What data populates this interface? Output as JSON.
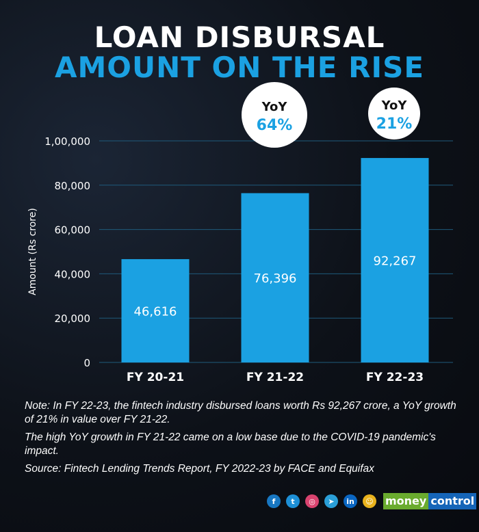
{
  "title_line1": "LOAN DISBURSAL",
  "title_line2": "AMOUNT ON THE RISE",
  "chart_data": {
    "type": "bar",
    "categories": [
      "FY 20-21",
      "FY 21-22",
      "FY 22-23"
    ],
    "values": [
      46616,
      76396,
      92267
    ],
    "data_labels": [
      "46,616",
      "76,396",
      "92,267"
    ],
    "ylabel": "Amount (Rs crore)",
    "xlabel": "",
    "ylim": [
      0,
      100000
    ],
    "yticks": [
      0,
      20000,
      40000,
      60000,
      80000,
      100000
    ],
    "ytick_labels": [
      "0",
      "20,000",
      "40,000",
      "60,000",
      "80,000",
      "1,00,000"
    ],
    "grid": true,
    "bar_color": "#1ba1e2",
    "annotations": [
      {
        "category": "FY 21-22",
        "label": "YoY",
        "value": "64%"
      },
      {
        "category": "FY 22-23",
        "label": "YoY",
        "value": "21%"
      }
    ]
  },
  "notes": [
    "Note: In FY 22-23, the fintech industry disbursed loans worth Rs 92,267 crore, a YoY growth of 21% in value over FY 21-22.",
    "The high YoY growth in FY 21-22 came on a low base due to the COVID-19 pandemic's impact.",
    "Source: Fintech Lending Trends Report, FY 2022-23 by FACE and Equifax"
  ],
  "social": [
    {
      "icon": "facebook-icon",
      "glyph": "f",
      "color": "#1877c2"
    },
    {
      "icon": "twitter-icon",
      "glyph": "t",
      "color": "#1d8fd6"
    },
    {
      "icon": "instagram-icon",
      "glyph": "◎",
      "color": "#d9436f"
    },
    {
      "icon": "telegram-icon",
      "glyph": "➤",
      "color": "#2a9fd8"
    },
    {
      "icon": "linkedin-icon",
      "glyph": "in",
      "color": "#0a66c2"
    },
    {
      "icon": "snapchat-icon",
      "glyph": "☺",
      "color": "#e9b21c"
    }
  ],
  "logo": {
    "part1": "money",
    "part2": "control",
    "color1": "#6aab2e",
    "color2": "#1565b8"
  }
}
